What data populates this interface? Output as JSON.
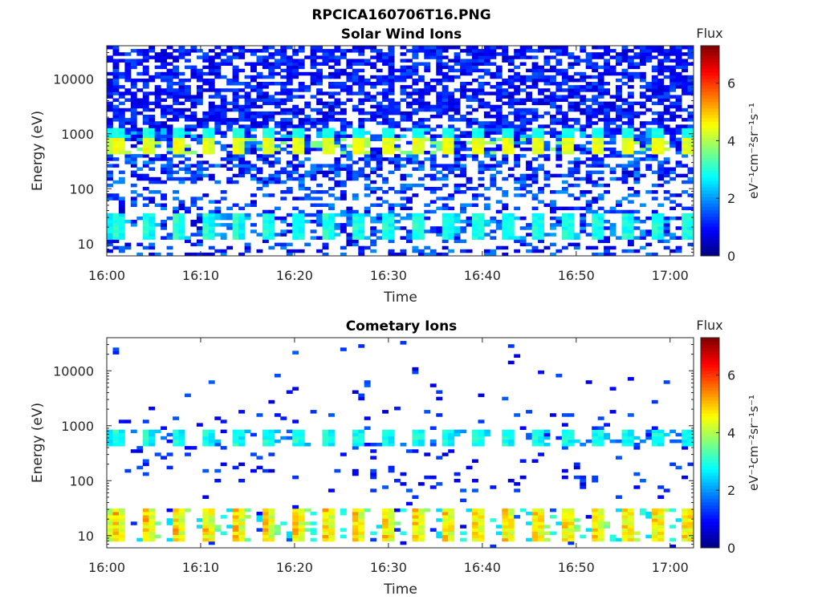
{
  "figure_title": "RPCICA160706T16.PNG",
  "colorscale": [
    "#00007f",
    "#0000ff",
    "#007fff",
    "#00ffff",
    "#7fff7f",
    "#ffff00",
    "#ff7f00",
    "#ff0000",
    "#7f0000"
  ],
  "chart_data": [
    {
      "type": "heatmap",
      "title": "Solar Wind Ions",
      "xlabel": "Time",
      "ylabel": "Energy (eV)",
      "x_range": [
        "16:00",
        "17:02"
      ],
      "xticks": [
        "16:00",
        "16:10",
        "16:20",
        "16:30",
        "16:40",
        "16:50",
        "17:00"
      ],
      "xtick_minutes": [
        0,
        10,
        20,
        30,
        40,
        50,
        60
      ],
      "y_scale": "log",
      "ylim": [
        6,
        40000
      ],
      "yticks": [
        "10",
        "100",
        "1000",
        "10000"
      ],
      "ytick_values": [
        10,
        100,
        1000,
        10000
      ],
      "colorbar": {
        "title": "Flux",
        "label": "eV⁻¹cm⁻²sr⁻¹s⁻¹",
        "range": [
          0,
          7.3
        ],
        "ticks": [
          "0",
          "2",
          "4",
          "6"
        ],
        "tick_values": [
          0,
          2,
          4,
          6
        ]
      },
      "features": {
        "bands": [
          {
            "energy_range": [
              450,
              800
            ],
            "flux_range": [
              3.5,
              4.8
            ],
            "period_min": 3.2
          },
          {
            "energy_range": [
              850,
              1300
            ],
            "flux_range": [
              2.2,
              3.2
            ],
            "period_min": 3.2
          },
          {
            "energy_range": [
              12,
              35
            ],
            "flux_range": [
              1.8,
              3.4
            ],
            "period_min": 3.2
          }
        ],
        "background_flux_range": [
          0.5,
          2.0
        ]
      }
    },
    {
      "type": "heatmap",
      "title": "Cometary Ions",
      "xlabel": "Time",
      "ylabel": "Energy (eV)",
      "x_range": [
        "16:00",
        "17:02"
      ],
      "xticks": [
        "16:00",
        "16:10",
        "16:20",
        "16:30",
        "16:40",
        "16:50",
        "17:00"
      ],
      "xtick_minutes": [
        0,
        10,
        20,
        30,
        40,
        50,
        60
      ],
      "y_scale": "log",
      "ylim": [
        6,
        40000
      ],
      "yticks": [
        "10",
        "100",
        "1000",
        "10000"
      ],
      "ytick_values": [
        10,
        100,
        1000,
        10000
      ],
      "colorbar": {
        "title": "Flux",
        "label": "eV⁻¹cm⁻²sr⁻¹s⁻¹",
        "range": [
          0,
          7.3
        ],
        "ticks": [
          "0",
          "2",
          "4",
          "6"
        ],
        "tick_values": [
          0,
          2,
          4,
          6
        ]
      },
      "features": {
        "bands": [
          {
            "energy_range": [
              8,
              32
            ],
            "flux_range": [
              2.5,
              5.6
            ],
            "period_min": 3.2
          },
          {
            "energy_range": [
              450,
              800
            ],
            "flux_range": [
              1.6,
              3.4
            ],
            "period_min": 3.2
          }
        ],
        "sparse_flux_range": [
          0.6,
          1.6
        ]
      }
    }
  ]
}
